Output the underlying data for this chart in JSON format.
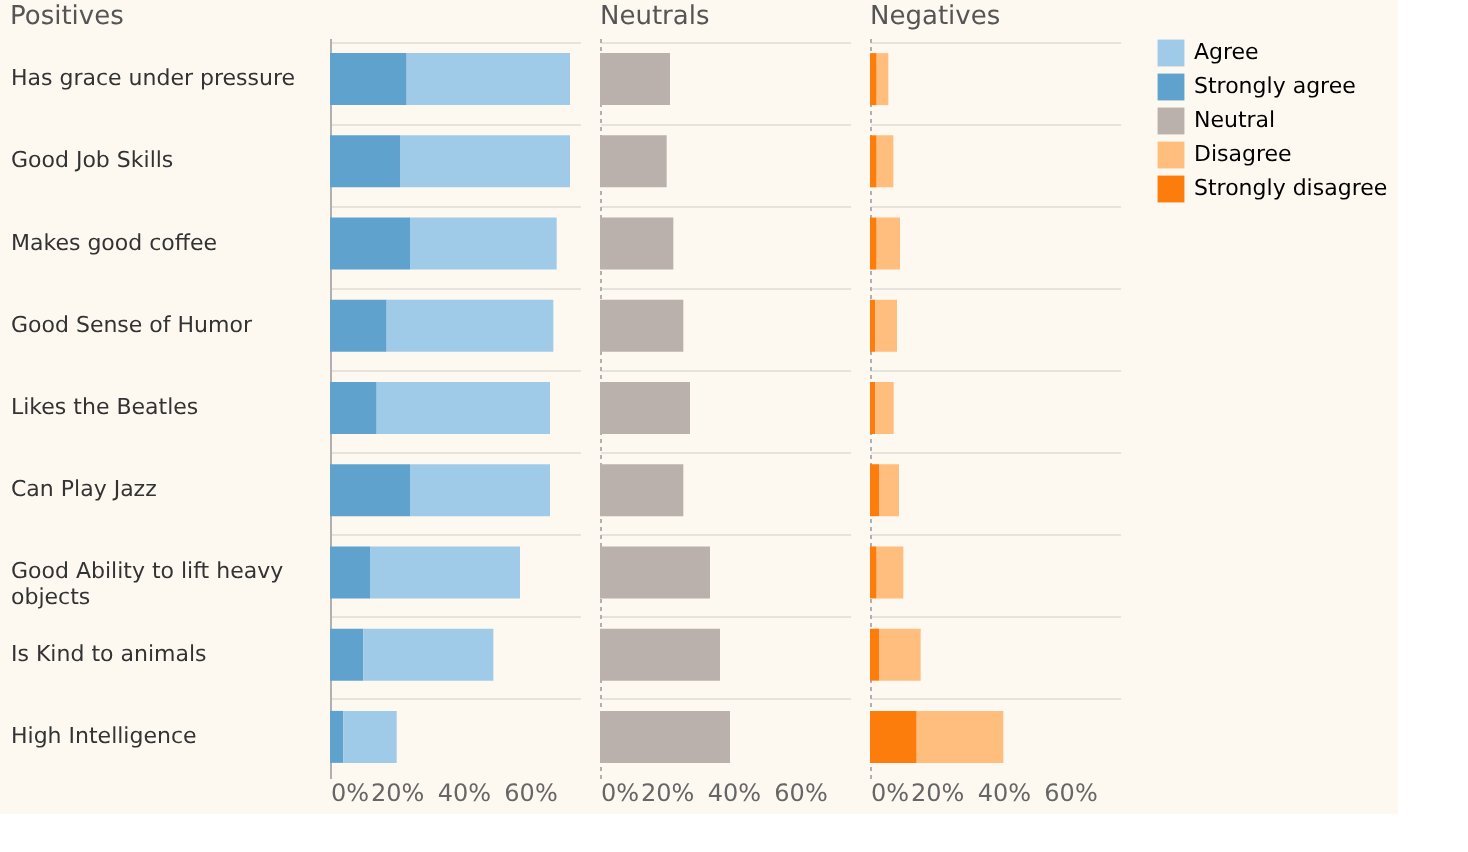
{
  "chart_data": [
    {
      "type": "bar",
      "title": "Positives",
      "orientation": "horizontal",
      "stacked": true,
      "grid": "y",
      "legend": "right",
      "categories": [
        "Has grace under pressure",
        "Good Job Skills",
        "Makes good coffee",
        "Good Sense of Humor",
        "Likes the Beatles",
        "Can Play Jazz",
        "Good Ability to lift heavy objects",
        "Is Kind to animals",
        "High Intelligence"
      ],
      "series": [
        {
          "name": "Strongly agree",
          "color": "#5fa2ce",
          "values": [
            23,
            21,
            24,
            17,
            14,
            24,
            12,
            10,
            4
          ]
        },
        {
          "name": "Agree",
          "color": "#a0cbe8",
          "values": [
            49,
            51,
            44,
            50,
            52,
            42,
            45,
            39,
            16
          ]
        }
      ],
      "xlim": [
        0,
        75
      ],
      "xticks": [
        {
          "value": 0,
          "label": "0%"
        },
        {
          "value": 20,
          "label": "20%"
        },
        {
          "value": 40,
          "label": "40%"
        },
        {
          "value": 60,
          "label": "60%"
        }
      ]
    },
    {
      "type": "bar",
      "title": "Neutrals",
      "orientation": "horizontal",
      "stacked": true,
      "grid": "y",
      "legend": "right",
      "tick_labels": "x",
      "categories": [
        "Has grace under pressure",
        "Good Job Skills",
        "Makes good coffee",
        "Good Sense of Humor",
        "Likes the Beatles",
        "Can Play Jazz",
        "Good Ability to lift heavy objects",
        "Is Kind to animals",
        "High Intelligence"
      ],
      "series": [
        {
          "name": "Neutral",
          "color": "#bab0ac",
          "values": [
            21,
            20,
            22,
            25,
            27,
            25,
            33,
            36,
            39
          ]
        }
      ],
      "xlim": [
        0,
        75
      ],
      "xticks": [
        {
          "value": 0,
          "label": "0%"
        },
        {
          "value": 20,
          "label": "20%"
        },
        {
          "value": 40,
          "label": "40%"
        },
        {
          "value": 60,
          "label": "60%"
        }
      ]
    },
    {
      "type": "bar",
      "title": "Negatives",
      "orientation": "horizontal",
      "stacked": true,
      "grid": "y",
      "legend": "right",
      "tick_labels": "x",
      "categories": [
        "Has grace under pressure",
        "Good Job Skills",
        "Makes good coffee",
        "Good Sense of Humor",
        "Likes the Beatles",
        "Can Play Jazz",
        "Good Ability to lift heavy objects",
        "Is Kind to animals",
        "High Intelligence"
      ],
      "series": [
        {
          "name": "Strongly disagree",
          "color": "#fc7d0b",
          "values": [
            2,
            2,
            2,
            1.6,
            1.6,
            2.7,
            2,
            2.7,
            14
          ]
        },
        {
          "name": "Disagree",
          "color": "#ffbe7d",
          "values": [
            3.5,
            5,
            7,
            6.5,
            5.5,
            6,
            8,
            12.5,
            26
          ]
        }
      ],
      "xlim": [
        0,
        75
      ],
      "xticks": [
        {
          "value": 0,
          "label": "0%"
        },
        {
          "value": 20,
          "label": "20%"
        },
        {
          "value": 40,
          "label": "40%"
        },
        {
          "value": 60,
          "label": "60%"
        }
      ]
    }
  ]
}
